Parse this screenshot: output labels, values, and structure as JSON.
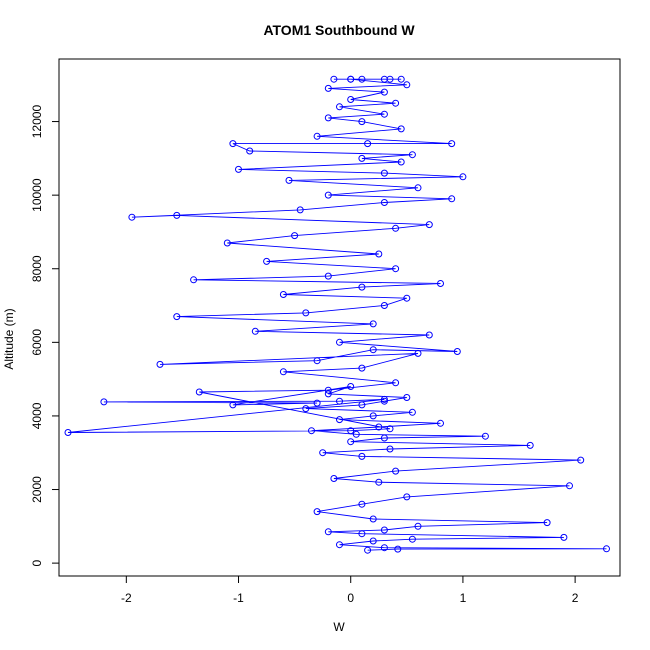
{
  "chart_data": {
    "type": "scatter",
    "title": "ATOM1 Southbound W",
    "xlabel": "W",
    "ylabel": "Altitude (m)",
    "xlim": [
      -2.6,
      2.4
    ],
    "ylim": [
      -350,
      13700
    ],
    "x_ticks": [
      -2,
      -1,
      0,
      1,
      2
    ],
    "y_ticks": [
      0,
      2000,
      4000,
      6000,
      8000,
      10000,
      12000
    ],
    "grid": false,
    "legend": "none",
    "marker": "open-circle",
    "connected": true,
    "color": "#0000ff",
    "series": [
      {
        "x": [
          0.15,
          0.42,
          2.28,
          0.3,
          -0.1,
          0.2,
          0.55,
          1.9,
          0.1,
          -0.2,
          0.3,
          0.6,
          1.75,
          0.2,
          -0.3,
          0.1,
          0.5,
          1.95,
          0.25,
          -0.15,
          0.4,
          2.05,
          0.1,
          -0.25,
          0.35,
          1.6,
          0.0,
          0.3,
          1.2,
          0.05,
          -0.35,
          0.25,
          0.8,
          -0.1,
          0.2,
          0.55,
          -0.4,
          0.1,
          0.3,
          0.5,
          -0.2,
          0.0,
          -1.05,
          -0.3,
          -2.2,
          -0.1,
          0.3,
          -2.52,
          0.0,
          0.35,
          -1.35,
          -0.2,
          0.4,
          -0.6,
          0.1,
          0.6,
          -1.7,
          -0.3,
          0.2,
          0.95,
          -0.1,
          0.7,
          -0.85,
          0.2,
          -1.55,
          -0.4,
          0.3,
          0.5,
          -0.6,
          0.1,
          0.8,
          -1.4,
          -0.2,
          0.4,
          -0.75,
          0.25,
          -1.1,
          -0.5,
          0.4,
          0.7,
          -1.55,
          -1.95,
          -0.45,
          0.3,
          0.9,
          -0.2,
          0.6,
          -0.55,
          1.0,
          0.3,
          -1.0,
          0.45,
          0.1,
          0.55,
          -0.9,
          -1.05,
          0.15,
          0.9,
          -0.3,
          0.45,
          0.1,
          -0.2,
          0.3,
          -0.1,
          0.4,
          0.0,
          0.3,
          -0.2,
          0.5,
          0.0,
          -0.15,
          0.35,
          0.0,
          0.45,
          0.1,
          0.3
        ],
        "y": [
          350,
          380,
          390,
          420,
          500,
          600,
          650,
          700,
          800,
          850,
          900,
          1000,
          1100,
          1200,
          1400,
          1600,
          1800,
          2100,
          2200,
          2300,
          2500,
          2800,
          2900,
          3000,
          3100,
          3200,
          3300,
          3400,
          3450,
          3500,
          3600,
          3700,
          3800,
          3900,
          4000,
          4100,
          4200,
          4300,
          4400,
          4500,
          4600,
          4800,
          4300,
          4350,
          4380,
          4400,
          4450,
          3550,
          3600,
          3650,
          4650,
          4700,
          4900,
          5200,
          5300,
          5700,
          5400,
          5500,
          5800,
          5750,
          6000,
          6200,
          6300,
          6500,
          6700,
          6800,
          7000,
          7200,
          7300,
          7500,
          7600,
          7700,
          7800,
          8000,
          8200,
          8400,
          8700,
          8900,
          9100,
          9200,
          9450,
          9400,
          9600,
          9800,
          9900,
          10000,
          10200,
          10400,
          10500,
          10600,
          10700,
          10900,
          11000,
          11100,
          11200,
          11400,
          11400,
          11400,
          11600,
          11800,
          12000,
          12100,
          12200,
          12400,
          12500,
          12600,
          12800,
          12900,
          13000,
          13150,
          13150,
          13150,
          13150,
          13150,
          13150,
          13150
        ]
      }
    ]
  }
}
